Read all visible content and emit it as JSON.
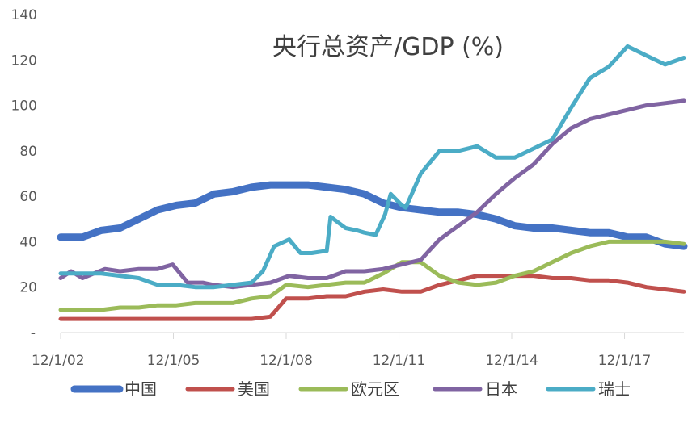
{
  "chart_data": {
    "type": "line",
    "title": "央行总资产/GDP (%)",
    "xlabel": "",
    "ylabel": "",
    "ylim": [
      0,
      140
    ],
    "y_ticks": [
      140,
      120,
      100,
      80,
      60,
      40,
      20
    ],
    "y_zero_label": "-",
    "x_ticks": [
      "12/1/02",
      "12/1/05",
      "12/1/08",
      "12/1/11",
      "12/1/14",
      "12/1/17"
    ],
    "x_tick_positions": [
      2002.92,
      2005.92,
      2008.92,
      2011.92,
      2014.92,
      2017.92
    ],
    "xlim": [
      2002.92,
      2019.5
    ],
    "grid": false,
    "legend_position": "bottom",
    "series": [
      {
        "name": "中国",
        "color": "#4472C4",
        "width": 9,
        "x": [
          2002.92,
          2003.5,
          2004.0,
          2004.5,
          2005.0,
          2005.5,
          2006.0,
          2006.5,
          2007.0,
          2007.5,
          2008.0,
          2008.5,
          2009.0,
          2009.5,
          2010.0,
          2010.5,
          2011.0,
          2011.5,
          2012.0,
          2012.5,
          2013.0,
          2013.5,
          2014.0,
          2014.5,
          2015.0,
          2015.5,
          2016.0,
          2016.5,
          2017.0,
          2017.5,
          2018.0,
          2018.5,
          2019.0,
          2019.5
        ],
        "values": [
          42,
          42,
          45,
          46,
          50,
          54,
          56,
          57,
          61,
          62,
          64,
          65,
          65,
          65,
          64,
          63,
          61,
          57,
          55,
          54,
          53,
          53,
          52,
          50,
          47,
          46,
          46,
          45,
          44,
          44,
          42,
          42,
          39,
          38
        ]
      },
      {
        "name": "美国",
        "color": "#C0504D",
        "width": 5,
        "x": [
          2002.92,
          2003.5,
          2004.0,
          2005.0,
          2006.0,
          2007.0,
          2008.0,
          2008.5,
          2008.92,
          2009.5,
          2010.0,
          2010.5,
          2011.0,
          2011.5,
          2012.0,
          2012.5,
          2013.0,
          2013.5,
          2014.0,
          2014.5,
          2015.0,
          2015.5,
          2016.0,
          2016.5,
          2017.0,
          2017.5,
          2018.0,
          2018.5,
          2019.0,
          2019.5
        ],
        "values": [
          6,
          6,
          6,
          6,
          6,
          6,
          6,
          7,
          15,
          15,
          16,
          16,
          18,
          19,
          18,
          18,
          21,
          23,
          25,
          25,
          25,
          25,
          24,
          24,
          23,
          23,
          22,
          20,
          19,
          18
        ]
      },
      {
        "name": "欧元区",
        "color": "#9BBB59",
        "width": 5,
        "x": [
          2002.92,
          2003.5,
          2004.0,
          2004.5,
          2005.0,
          2005.5,
          2006.0,
          2006.5,
          2007.0,
          2007.5,
          2008.0,
          2008.5,
          2008.92,
          2009.5,
          2010.0,
          2010.5,
          2011.0,
          2011.5,
          2012.0,
          2012.5,
          2013.0,
          2013.5,
          2014.0,
          2014.5,
          2015.0,
          2015.5,
          2016.0,
          2016.5,
          2017.0,
          2017.5,
          2018.0,
          2018.5,
          2019.0,
          2019.5
        ],
        "values": [
          10,
          10,
          10,
          11,
          11,
          12,
          12,
          13,
          13,
          13,
          15,
          16,
          21,
          20,
          21,
          22,
          22,
          26,
          31,
          31,
          25,
          22,
          21,
          22,
          25,
          27,
          31,
          35,
          38,
          40,
          40,
          40,
          40,
          39
        ]
      },
      {
        "name": "日本",
        "color": "#8064A2",
        "width": 5,
        "x": [
          2002.92,
          2003.2,
          2003.5,
          2003.8,
          2004.1,
          2004.5,
          2005.0,
          2005.5,
          2005.9,
          2006.3,
          2006.7,
          2007.0,
          2007.5,
          2008.0,
          2008.5,
          2009.0,
          2009.5,
          2010.0,
          2010.5,
          2011.0,
          2011.5,
          2012.0,
          2012.5,
          2013.0,
          2013.5,
          2014.0,
          2014.5,
          2015.0,
          2015.5,
          2016.0,
          2016.5,
          2017.0,
          2017.5,
          2018.0,
          2018.5,
          2019.0,
          2019.5
        ],
        "values": [
          24,
          27,
          24,
          26,
          28,
          27,
          28,
          28,
          30,
          22,
          22,
          21,
          20,
          21,
          22,
          25,
          24,
          24,
          27,
          27,
          28,
          30,
          32,
          41,
          47,
          53,
          61,
          68,
          74,
          83,
          90,
          94,
          96,
          98,
          100,
          101,
          102
        ]
      },
      {
        "name": "瑞士",
        "color": "#4BACC6",
        "width": 5,
        "x": [
          2002.92,
          2003.5,
          2004.0,
          2004.5,
          2005.0,
          2005.5,
          2006.0,
          2006.5,
          2007.0,
          2007.5,
          2008.0,
          2008.3,
          2008.6,
          2009.0,
          2009.3,
          2009.6,
          2010.0,
          2010.1,
          2010.5,
          2010.8,
          2011.0,
          2011.3,
          2011.55,
          2011.7,
          2012.0,
          2012.1,
          2012.5,
          2013.0,
          2013.5,
          2014.0,
          2014.5,
          2015.0,
          2015.5,
          2016.0,
          2016.5,
          2017.0,
          2017.5,
          2018.0,
          2018.5,
          2019.0,
          2019.5
        ],
        "values": [
          26,
          26,
          26,
          25,
          24,
          21,
          21,
          20,
          20,
          21,
          22,
          27,
          38,
          41,
          35,
          35,
          36,
          51,
          46,
          45,
          44,
          43,
          52,
          61,
          56,
          55,
          70,
          80,
          80,
          82,
          77,
          77,
          81,
          85,
          99,
          112,
          117,
          126,
          122,
          118,
          121
        ]
      }
    ]
  }
}
